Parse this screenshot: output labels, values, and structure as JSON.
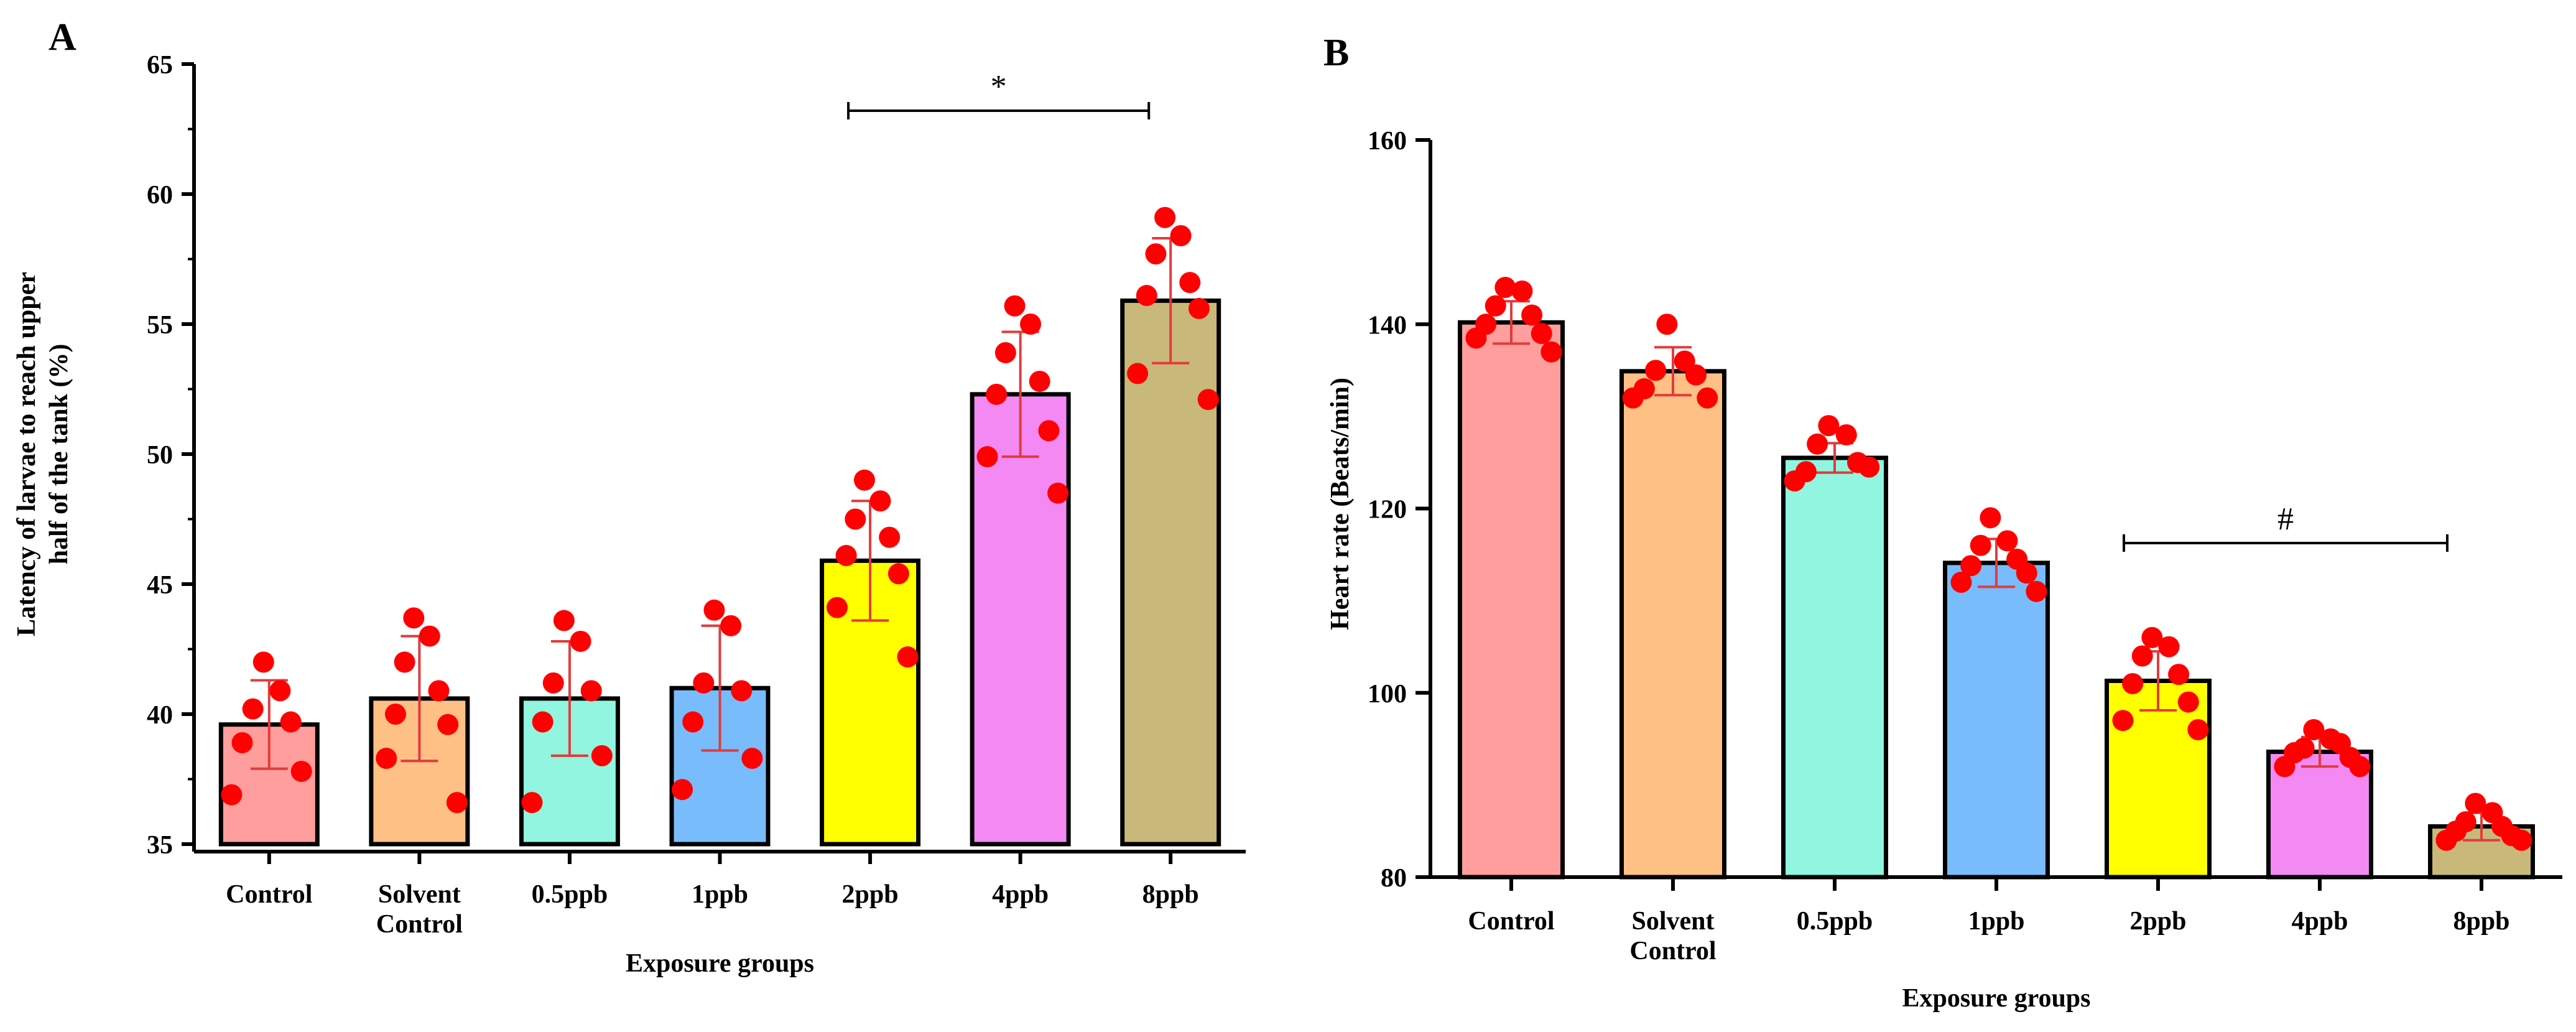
{
  "figure": {
    "panels": [
      "A",
      "B"
    ]
  },
  "colors": {
    "bars": [
      "#ff9e9c",
      "#ffc086",
      "#91f5df",
      "#78bcfb",
      "#ffff00",
      "#f589f3",
      "#c8b87a"
    ],
    "points": "#ff0000",
    "error_bars": "#e23b3b",
    "axes": "#000000"
  },
  "chart_data": [
    {
      "panel": "A",
      "type": "bar",
      "title": "",
      "categories": [
        [
          "Control"
        ],
        [
          "Solvent",
          "Control"
        ],
        [
          "0.5ppb"
        ],
        [
          "1ppb"
        ],
        [
          "2ppb"
        ],
        [
          "4ppb"
        ],
        [
          "8ppb"
        ]
      ],
      "xlabel": "Exposure groups",
      "ylabel": [
        "Latency of larvae to reach upper",
        "half of the tank (%)"
      ],
      "ylim": [
        35,
        65
      ],
      "yticks": [
        35,
        40,
        45,
        50,
        55,
        60,
        65
      ],
      "values": [
        39.6,
        40.6,
        40.6,
        41.0,
        45.9,
        52.3,
        55.9
      ],
      "errors": [
        1.7,
        2.4,
        2.2,
        2.4,
        2.3,
        2.4,
        2.4
      ],
      "points": [
        [
          42.0,
          40.9,
          40.2,
          39.7,
          38.9,
          37.8,
          36.9
        ],
        [
          43.7,
          43.0,
          42.0,
          40.9,
          40.0,
          39.6,
          38.3,
          36.6
        ],
        [
          43.6,
          42.8,
          41.2,
          40.9,
          39.7,
          38.4,
          36.6
        ],
        [
          44.0,
          43.4,
          41.2,
          40.9,
          39.7,
          38.3,
          37.1
        ],
        [
          49.0,
          48.2,
          47.5,
          46.8,
          46.1,
          45.4,
          44.1,
          42.2
        ],
        [
          55.7,
          55.0,
          53.9,
          52.8,
          52.3,
          50.9,
          49.9,
          48.5
        ],
        [
          59.1,
          58.4,
          57.7,
          56.6,
          56.1,
          55.6,
          53.1,
          52.1
        ]
      ],
      "significance": {
        "symbol": "*",
        "from": "2ppb",
        "to": "8ppb"
      }
    },
    {
      "panel": "B",
      "type": "bar",
      "title": "",
      "categories": [
        [
          "Control"
        ],
        [
          "Solvent",
          "Control"
        ],
        [
          "0.5ppb"
        ],
        [
          "1ppb"
        ],
        [
          "2ppb"
        ],
        [
          "4ppb"
        ],
        [
          "8ppb"
        ]
      ],
      "xlabel": "Exposure groups",
      "ylabel": [
        "Heart rate (Beats/min)"
      ],
      "ylim": [
        80,
        160
      ],
      "yticks": [
        80,
        100,
        120,
        140,
        160
      ],
      "values": [
        140.2,
        134.9,
        125.5,
        114.1,
        101.3,
        93.6,
        85.5
      ],
      "errors": [
        2.3,
        2.6,
        1.6,
        2.6,
        3.2,
        1.6,
        1.5
      ],
      "points": [
        [
          144.0,
          143.6,
          142.0,
          141.0,
          140.0,
          139.0,
          138.5,
          137.0
        ],
        [
          140.0,
          136.0,
          135.0,
          134.5,
          133.0,
          132.0,
          132.0
        ],
        [
          129.0,
          128.0,
          127.0,
          125.0,
          124.0,
          124.5,
          123.0
        ],
        [
          119.0,
          116.5,
          116.0,
          114.5,
          113.8,
          113.0,
          112.0,
          111.0
        ],
        [
          106.0,
          105.0,
          104.0,
          102.0,
          101.0,
          99.0,
          97.0,
          96.0
        ],
        [
          96.0,
          95.0,
          94.0,
          94.5,
          93.5,
          93.0,
          92.0,
          92.0
        ],
        [
          88.0,
          87.0,
          86.0,
          85.5,
          85.0,
          84.5,
          84.0,
          84.0
        ]
      ],
      "significance": {
        "symbol": "#",
        "from": "2ppb",
        "to": "8ppb"
      }
    }
  ]
}
